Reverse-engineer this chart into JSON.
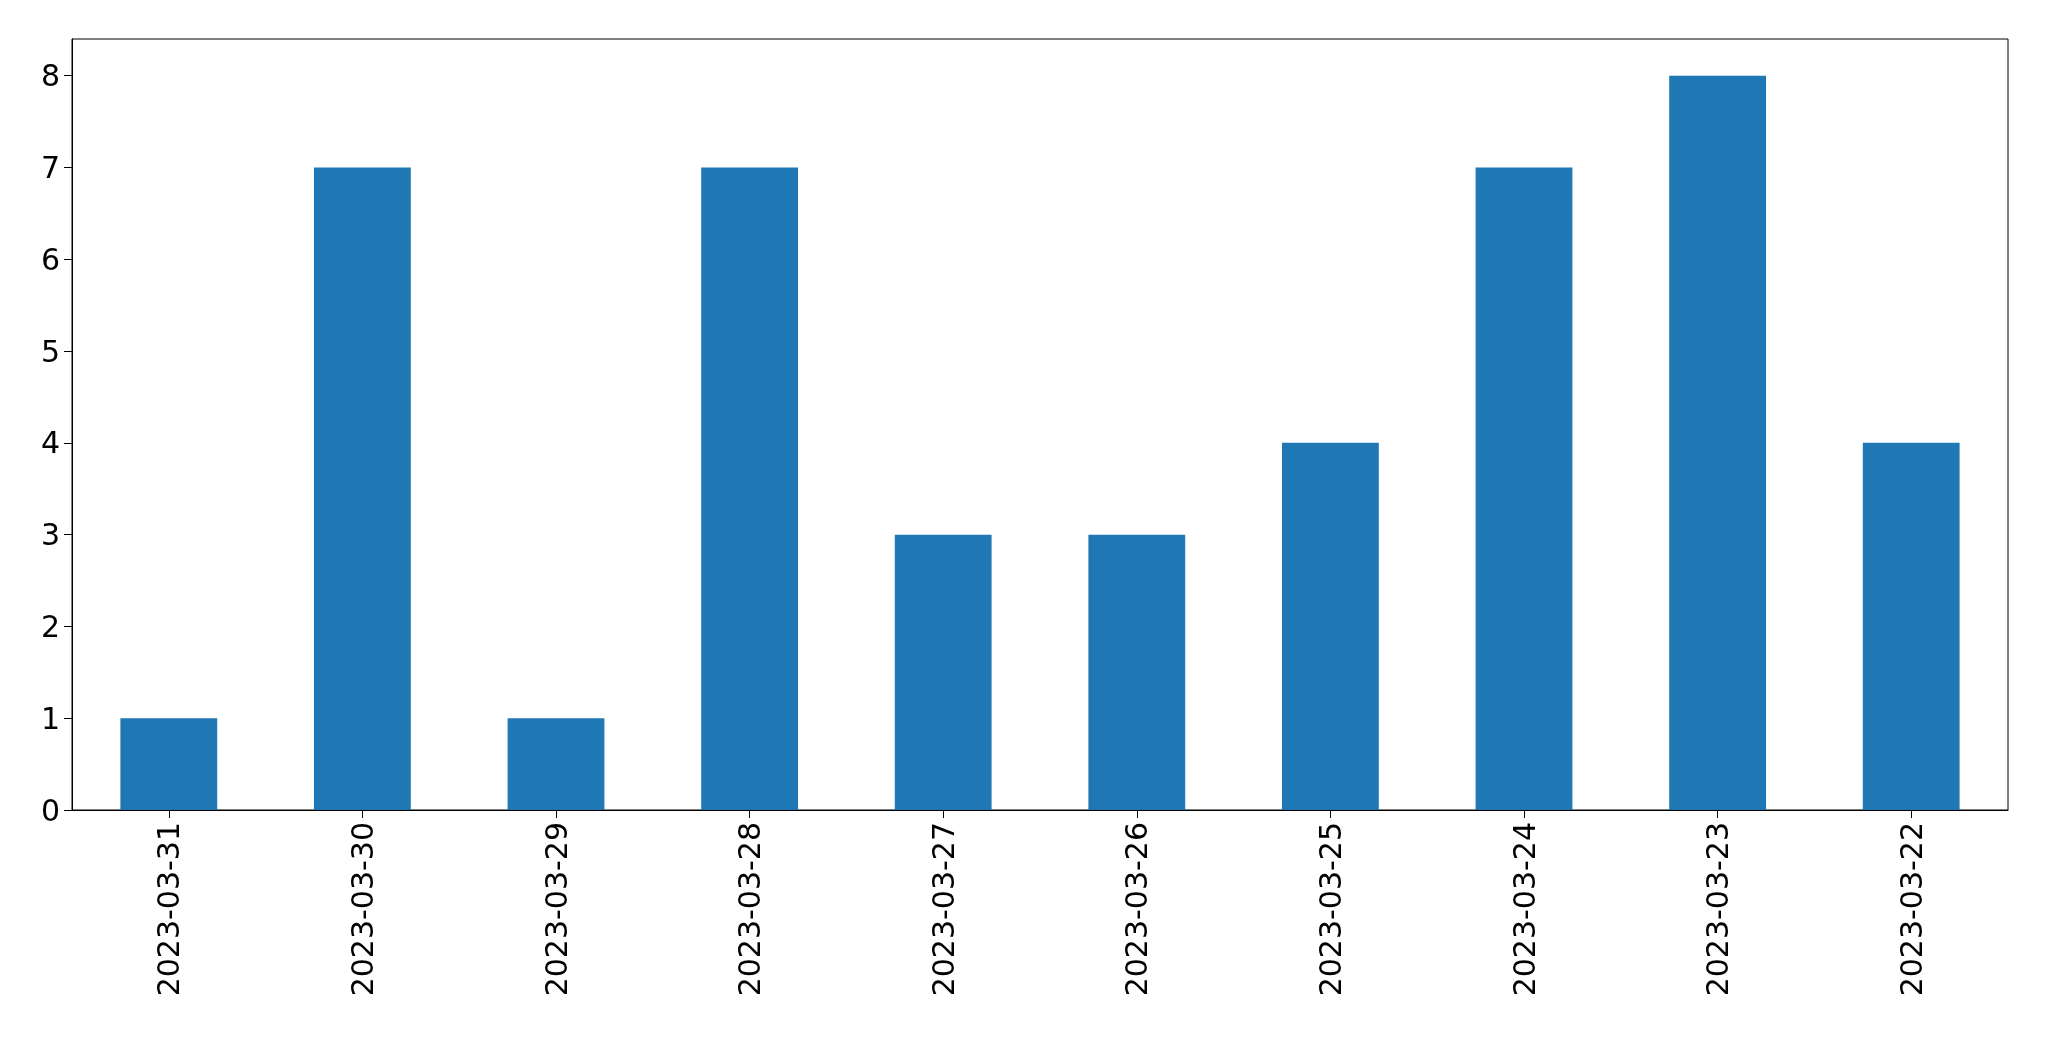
{
  "chart_data": {
    "type": "bar",
    "categories": [
      "2023-03-31",
      "2023-03-30",
      "2023-03-29",
      "2023-03-28",
      "2023-03-27",
      "2023-03-26",
      "2023-03-25",
      "2023-03-24",
      "2023-03-23",
      "2023-03-22"
    ],
    "values": [
      1,
      7,
      1,
      7,
      3,
      3,
      4,
      7,
      8,
      4
    ],
    "color": "#1f77b4",
    "ylim": [
      0,
      8.4
    ],
    "yticks": [
      0,
      1,
      2,
      3,
      4,
      5,
      6,
      7,
      8
    ],
    "grid": false
  }
}
